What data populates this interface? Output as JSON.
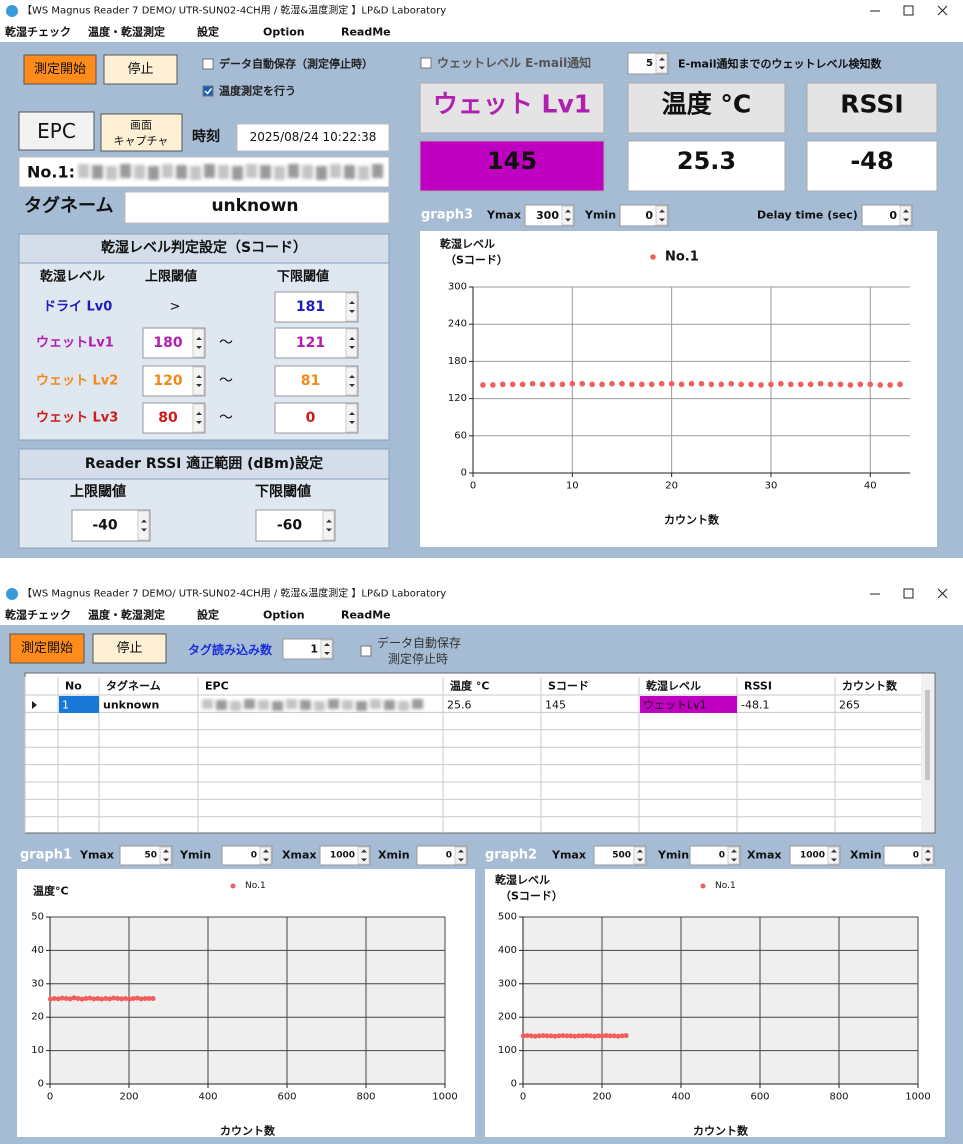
{
  "window1": {
    "title": "【WS Magnus Reader 7 DEMO/ UTR-SUN02-4CH用 / 乾湿&温度測定 】LP&D Laboratory",
    "menu": [
      "乾湿チェック",
      "温度・乾湿測定",
      "設定",
      "Option",
      "ReadMe"
    ],
    "start_button": "測定開始",
    "stop_button": "停止",
    "auto_save_checkbox": "データ自動保存（測定停止時）",
    "temp_checkbox": "温度測定を行う",
    "epc_button": "EPC",
    "capture_button": [
      "画面",
      "キャプチャ"
    ],
    "time_label": "時刻",
    "time_value": "2025/08/24 10:22:38",
    "tag_no": "No.1:",
    "tag_name_label": "タグネーム",
    "tag_name_value": "unknown",
    "level_settings": {
      "header": "乾湿レベル判定設定（Sコード）",
      "columns": [
        "乾湿レベル",
        "上限閾値",
        "下限閾値"
      ],
      "rows": [
        {
          "name": "ドライ Lv0",
          "upper": ">",
          "lower": "181"
        },
        {
          "name": "ウェットLv1",
          "upper": "180",
          "separator": "〜",
          "lower": "121"
        },
        {
          "name": "ウェット Lv2",
          "upper": "120",
          "separator": "〜",
          "lower": "81"
        },
        {
          "name": "ウェット Lv3",
          "upper": "80",
          "separator": "〜",
          "lower": "0"
        }
      ]
    },
    "rssi_settings": {
      "header": "Reader RSSI 適正範囲 (dBm)設定",
      "upper_label": "上限閾値",
      "lower_label": "下限閾値",
      "upper": "-40",
      "lower": "-60"
    },
    "email_checkbox": "ウェットレベル E-mail通知",
    "email_count": "5",
    "email_count_label": "E-mail通知までのウェットレベル検知数",
    "status": [
      {
        "label": "ウェット Lv1",
        "value": "145"
      },
      {
        "label": "温度 °C",
        "value": "25.3"
      },
      {
        "label": "RSSI",
        "value": "-48"
      }
    ],
    "graph3_controls": {
      "name": "graph3",
      "ymax_label": "Ymax",
      "ymax": "300",
      "ymin_label": "Ymin",
      "ymin": "0",
      "delay_label": "Delay time (sec)",
      "delay": "0"
    }
  },
  "window2": {
    "title": "【WS Magnus Reader 7 DEMO/ UTR-SUN02-4CH用 / 乾湿&温度測定 】LP&D Laboratory",
    "menu": [
      "乾湿チェック",
      "温度・乾湿測定",
      "設定",
      "Option",
      "ReadMe"
    ],
    "start_button": "測定開始",
    "stop_button": "停止",
    "tag_read_label": "タグ読み込み数",
    "tag_read_count": "1",
    "auto_save_checkbox": [
      "データ自動保存",
      "測定停止時"
    ],
    "table": {
      "columns": [
        "No",
        "タグネーム",
        "EPC",
        "温度 °C",
        "Sコード",
        "乾湿レベル",
        "RSSI",
        "カウント数"
      ],
      "rows": [
        {
          "no": "1",
          "tag_name": "unknown",
          "temperature": "25.6",
          "s_code": "145",
          "level": "ウェットLv1",
          "rssi": "-48.1",
          "count": "265"
        }
      ]
    },
    "graph1_controls": {
      "name": "graph1",
      "ymax_label": "Ymax",
      "ymax": "50",
      "ymin_label": "Ymin",
      "ymin": "0",
      "xmax_label": "Xmax",
      "xmax": "1000",
      "xmin_label": "Xmin",
      "xmin": "0"
    },
    "graph2_controls": {
      "name": "graph2",
      "ymax_label": "Ymax",
      "ymax": "500",
      "ymin_label": "Ymin",
      "ymin": "0",
      "xmax_label": "Xmax",
      "xmax": "1000",
      "xmin_label": "Xmin",
      "xmin": "0"
    }
  },
  "chart_data": [
    {
      "type": "scatter",
      "y_label": [
        "乾湿レベル",
        "（Sコード）"
      ],
      "x_label": "カウント数",
      "x": [
        1,
        2,
        3,
        4,
        5,
        6,
        7,
        8,
        9,
        10,
        11,
        12,
        13,
        14,
        15,
        16,
        17,
        18,
        19,
        20,
        21,
        22,
        23,
        24,
        25,
        26,
        27,
        28,
        29,
        30,
        31,
        32,
        33,
        34,
        35,
        36,
        37,
        38,
        39,
        40,
        41,
        42,
        43
      ],
      "series": [
        {
          "name": "No.1",
          "color": "#f05f5c",
          "values": [
            142,
            142,
            143,
            143,
            143,
            144,
            143,
            143,
            143,
            144,
            144,
            143,
            143,
            144,
            144,
            143,
            143,
            143,
            144,
            144,
            143,
            144,
            144,
            143,
            143,
            144,
            143,
            143,
            142,
            143,
            144,
            143,
            143,
            143,
            144,
            143,
            143,
            142,
            143,
            143,
            142,
            142,
            143
          ]
        }
      ],
      "xlim": [
        0,
        44
      ],
      "ylim": [
        0,
        300
      ],
      "xticks": [
        0,
        10,
        20,
        30,
        40
      ],
      "yticks": [
        0,
        60,
        120,
        180,
        240,
        300
      ],
      "grid": true
    },
    {
      "type": "scatter",
      "y_label": [
        "温度°C"
      ],
      "x_label": "カウント数",
      "x": [
        1,
        11,
        21,
        31,
        41,
        51,
        61,
        71,
        81,
        91,
        101,
        111,
        121,
        131,
        141,
        151,
        161,
        171,
        181,
        191,
        201,
        211,
        221,
        231,
        241,
        251,
        261
      ],
      "series": [
        {
          "name": "No.1",
          "color": "#f05f5c",
          "values": [
            25.4,
            25.6,
            25.5,
            25.7,
            25.6,
            25.5,
            25.8,
            25.6,
            25.4,
            25.6,
            25.7,
            25.5,
            25.6,
            25.4,
            25.6,
            25.5,
            25.7,
            25.6,
            25.5,
            25.6,
            25.4,
            25.6,
            25.7,
            25.5,
            25.6,
            25.6,
            25.6
          ]
        }
      ],
      "xlim": [
        0,
        1000
      ],
      "ylim": [
        0,
        50
      ],
      "xticks": [
        0,
        200,
        400,
        600,
        800,
        1000
      ],
      "yticks": [
        0,
        10,
        20,
        30,
        40,
        50
      ],
      "grid": true
    },
    {
      "type": "scatter",
      "y_label": [
        "乾湿レベル",
        "（Sコード）"
      ],
      "x_label": "カウント数",
      "x": [
        1,
        11,
        21,
        31,
        41,
        51,
        61,
        71,
        81,
        91,
        101,
        111,
        121,
        131,
        141,
        151,
        161,
        171,
        181,
        191,
        201,
        211,
        221,
        231,
        241,
        251,
        261
      ],
      "series": [
        {
          "name": "No.1",
          "color": "#f05f5c",
          "values": [
            144,
            145,
            144,
            143,
            144,
            145,
            144,
            144,
            143,
            144,
            145,
            144,
            144,
            143,
            144,
            144,
            145,
            144,
            143,
            144,
            144,
            145,
            144,
            144,
            143,
            144,
            145
          ]
        }
      ],
      "xlim": [
        0,
        1000
      ],
      "ylim": [
        0,
        500
      ],
      "xticks": [
        0,
        200,
        400,
        600,
        800,
        1000
      ],
      "yticks": [
        0,
        100,
        200,
        300,
        400,
        500
      ],
      "grid": true
    }
  ]
}
